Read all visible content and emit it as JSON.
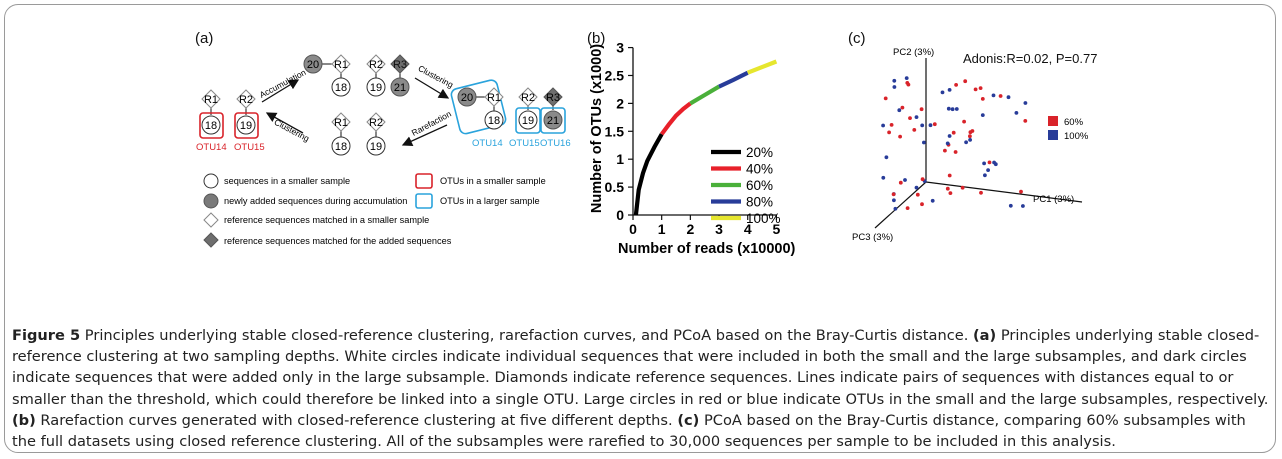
{
  "panel_a": {
    "label": "(a)",
    "node_labels": {
      "r1": "R1",
      "r2": "R2",
      "r3": "R3",
      "n18": "18",
      "n19": "19",
      "n20": "20",
      "n21": "21"
    },
    "arrows": {
      "accumulation": "Accumulation",
      "clustering_top": "Clustering",
      "clustering_left": "Clustering",
      "rarefaction": "Rarefaction"
    },
    "otu_labels": {
      "otu14_left": "OTU14",
      "otu15_left": "OTU15",
      "otu14_right": "OTU14",
      "otu15_right": "OTU15",
      "otu16_right": "OTU16"
    },
    "legend": {
      "white_circle": "sequences in a smaller sample",
      "gray_circle": "newly added sequences during accumulation",
      "white_diamond": "reference sequences matched in a smaller sample",
      "gray_diamond": "reference sequences matched for the added sequences",
      "red_box": "OTUs in a smaller sample",
      "blue_box": "OTUs in a larger sample"
    },
    "colors": {
      "red": "#d9232a",
      "blue": "#2aa3dc",
      "gray": "#7a7a7a"
    }
  },
  "panel_b": {
    "label": "(b)",
    "chart_data": {
      "type": "line",
      "xlabel": "Number of reads (x10000)",
      "ylabel": "Number of OTUs (x1000)",
      "xlim": [
        0,
        5.3
      ],
      "ylim": [
        0,
        3.1
      ],
      "xticks": [
        "0",
        "1",
        "2",
        "3",
        "4",
        "5"
      ],
      "yticks": [
        "0",
        "0.5",
        "1",
        "1.5",
        "2",
        "2.5",
        "3"
      ],
      "x": [
        0.1,
        0.2,
        0.35,
        0.5,
        0.75,
        1.0,
        1.25,
        1.5,
        1.75,
        2.0,
        2.5,
        3.0,
        3.5,
        4.0,
        4.5,
        5.0
      ],
      "y": [
        0.0,
        0.45,
        0.75,
        0.97,
        1.22,
        1.45,
        1.62,
        1.78,
        1.9,
        2.0,
        2.15,
        2.3,
        2.42,
        2.55,
        2.65,
        2.75
      ],
      "series": [
        {
          "name": "20%",
          "x_range": [
            0.1,
            1.0
          ],
          "color": "#000000"
        },
        {
          "name": "40%",
          "x_range": [
            1.0,
            2.0
          ],
          "color": "#e8202a"
        },
        {
          "name": "60%",
          "x_range": [
            2.0,
            3.0
          ],
          "color": "#4ab03a"
        },
        {
          "name": "80%",
          "x_range": [
            3.0,
            4.0
          ],
          "color": "#283c99"
        },
        {
          "name": "100%",
          "x_range": [
            4.0,
            5.0
          ],
          "color": "#e6e62e"
        }
      ],
      "legend_position": "bottom-right"
    }
  },
  "panel_c": {
    "label": "(c)",
    "annotation": "Adonis:R=0.02, P=0.77",
    "axes": {
      "pc1": "PC1 (3%)",
      "pc2": "PC2 (3%)",
      "pc3": "PC3 (3%)"
    },
    "legend": [
      {
        "name": "60%",
        "color": "#d9232a"
      },
      {
        "name": "100%",
        "color": "#283c99"
      }
    ]
  },
  "caption": {
    "fig_label": "Figure 5",
    "title_text": " Principles underlying stable closed-reference clustering, rarefaction curves, and PCoA based on the Bray-Curtis distance. ",
    "a_label": "(a)",
    "a_text": " Principles underlying stable closed-reference clustering at two sampling depths. White circles indicate individual sequences that were included in both the small and the large subsamples, and dark circles indicate sequences that were added only in the large subsample. Diamonds indicate reference sequences. Lines indicate pairs of sequences with distances equal to or smaller than the threshold, which could therefore be linked into a single OTU. Large circles in red or blue indicate OTUs in the small and the large subsamples, respectively. ",
    "b_label": "(b)",
    "b_text": " Rarefaction curves generated with closed-reference clustering at five different depths. ",
    "c_label": "(c)",
    "c_text": " PCoA based on the Bray-Curtis distance, comparing 60% subsamples with the full datasets using closed reference clustering. All of the subsamples were rarefied to 30,000 sequences per sample to be included in this analysis."
  }
}
